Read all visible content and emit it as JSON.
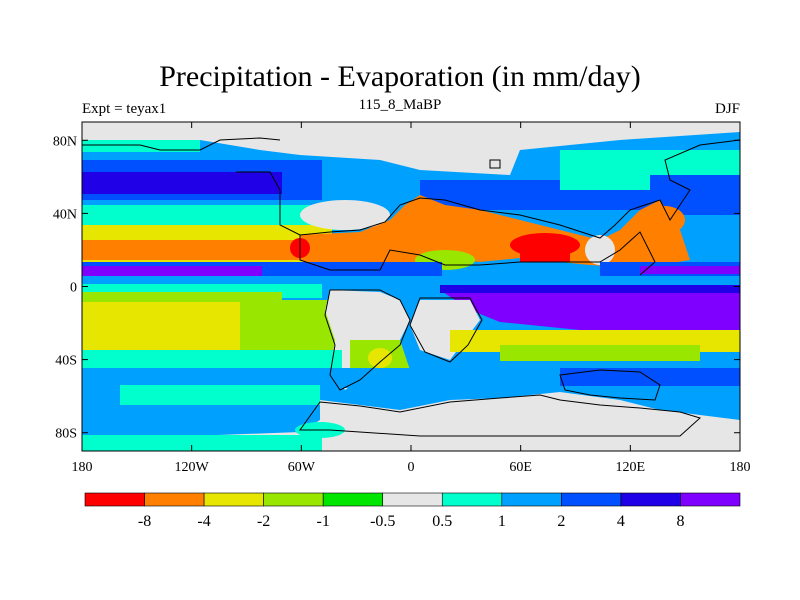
{
  "header": {
    "title": "Precipitation - Evaporation (in mm/day)",
    "left_label": "Expt = teyax1",
    "center_label": "115_8_MaBP",
    "right_label": "DJF"
  },
  "map": {
    "lon_range": [
      -180,
      180
    ],
    "lat_range": [
      -90,
      90
    ],
    "y_tick_labels": [
      "80N",
      "40N",
      "0",
      "40S",
      "80S"
    ],
    "y_tick_values": [
      80,
      40,
      0,
      -40,
      -80
    ],
    "x_tick_labels": [
      "180",
      "120W",
      "60W",
      "0",
      "60E",
      "120E",
      "180"
    ],
    "x_tick_values": [
      -180,
      -120,
      -60,
      0,
      60,
      120,
      180
    ]
  },
  "colorbar": {
    "colors": [
      "#ff0000",
      "#ff8000",
      "#e6e600",
      "#99e600",
      "#00e600",
      "#e6e6e6",
      "#00ffcc",
      "#00a0ff",
      "#0050ff",
      "#2000e6",
      "#8000ff"
    ],
    "labels": [
      "-8",
      "-4",
      "-2",
      "-1",
      "-0.5",
      "0.5",
      "1",
      "2",
      "4",
      "8"
    ]
  }
}
